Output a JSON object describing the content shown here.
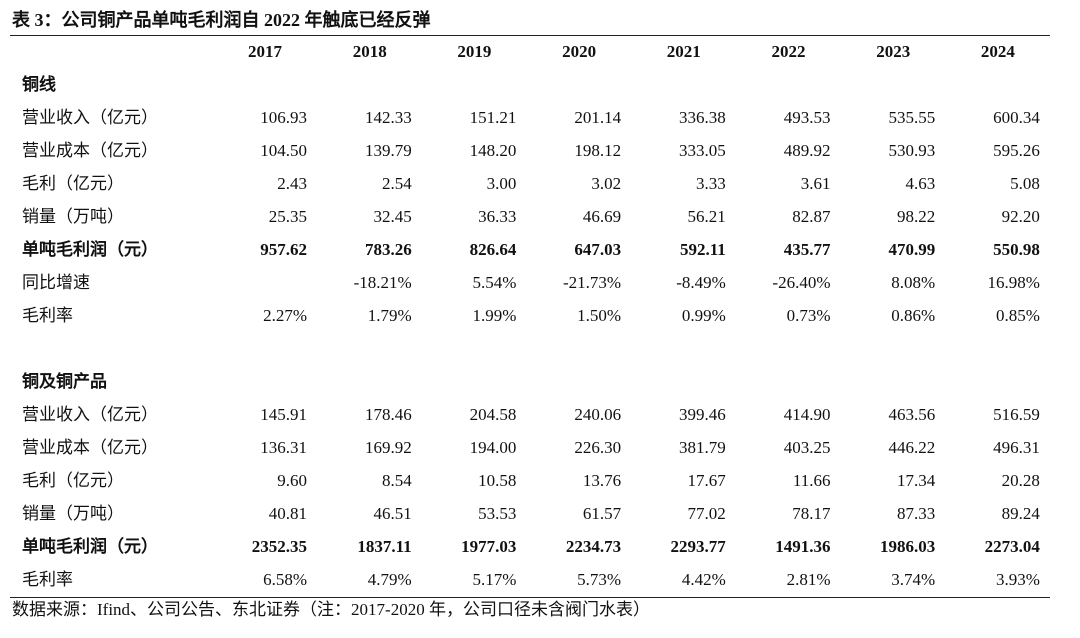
{
  "header": {
    "title": "表 3：公司铜产品单吨毛利润自 2022 年触底已经反弹"
  },
  "table": {
    "columns": [
      "2017",
      "2018",
      "2019",
      "2020",
      "2021",
      "2022",
      "2023",
      "2024"
    ],
    "sections": [
      {
        "name": "铜线",
        "rows": [
          {
            "label": "营业收入（亿元）",
            "values": [
              "106.93",
              "142.33",
              "151.21",
              "201.14",
              "336.38",
              "493.53",
              "535.55",
              "600.34"
            ]
          },
          {
            "label": "营业成本（亿元）",
            "values": [
              "104.50",
              "139.79",
              "148.20",
              "198.12",
              "333.05",
              "489.92",
              "530.93",
              "595.26"
            ]
          },
          {
            "label": "毛利（亿元）",
            "values": [
              "2.43",
              "2.54",
              "3.00",
              "3.02",
              "3.33",
              "3.61",
              "4.63",
              "5.08"
            ]
          },
          {
            "label": "销量（万吨）",
            "values": [
              "25.35",
              "32.45",
              "36.33",
              "46.69",
              "56.21",
              "82.87",
              "98.22",
              "92.20"
            ]
          },
          {
            "label": "单吨毛利润（元）",
            "bold": true,
            "values": [
              "957.62",
              "783.26",
              "826.64",
              "647.03",
              "592.11",
              "435.77",
              "470.99",
              "550.98"
            ]
          },
          {
            "label": "同比增速",
            "values": [
              null,
              "-18.21%",
              "5.54%",
              "-21.73%",
              "-8.49%",
              "-26.40%",
              "8.08%",
              "16.98%"
            ]
          },
          {
            "label": "毛利率",
            "values": [
              "2.27%",
              "1.79%",
              "1.99%",
              "1.50%",
              "0.99%",
              "0.73%",
              "0.86%",
              "0.85%"
            ]
          }
        ]
      },
      {
        "name": "铜及铜产品",
        "rows": [
          {
            "label": "营业收入（亿元）",
            "values": [
              "145.91",
              "178.46",
              "204.58",
              "240.06",
              "399.46",
              "414.90",
              "463.56",
              "516.59"
            ]
          },
          {
            "label": "营业成本（亿元）",
            "values": [
              "136.31",
              "169.92",
              "194.00",
              "226.30",
              "381.79",
              "403.25",
              "446.22",
              "496.31"
            ]
          },
          {
            "label": "毛利（亿元）",
            "values": [
              "9.60",
              "8.54",
              "10.58",
              "13.76",
              "17.67",
              "11.66",
              "17.34",
              "20.28"
            ]
          },
          {
            "label": "销量（万吨）",
            "values": [
              "40.81",
              "46.51",
              "53.53",
              "61.57",
              "77.02",
              "78.17",
              "87.33",
              "89.24"
            ]
          },
          {
            "label": "单吨毛利润（元）",
            "bold": true,
            "values": [
              "2352.35",
              "1837.11",
              "1977.03",
              "2234.73",
              "2293.77",
              "1491.36",
              "1986.03",
              "2273.04"
            ]
          },
          {
            "label": "毛利率",
            "values": [
              "6.58%",
              "4.79%",
              "5.17%",
              "5.73%",
              "4.42%",
              "2.81%",
              "3.74%",
              "3.93%"
            ]
          }
        ]
      }
    ]
  },
  "footer": {
    "source": "数据来源：Ifind、公司公告、东北证券（注：2017-2020 年，公司口径未含阀门水表）"
  }
}
